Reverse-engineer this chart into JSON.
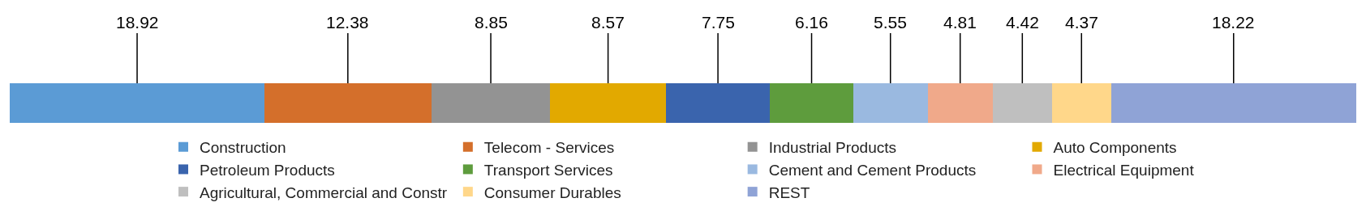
{
  "chart_data": {
    "type": "bar",
    "orientation": "horizontal",
    "stacked": true,
    "categories": [
      null
    ],
    "xlim": [
      0,
      100
    ],
    "tick_labels": false,
    "legend": "bottom",
    "data_labels": true,
    "series": [
      {
        "name": "Construction",
        "color": "#5b9bd5",
        "values": [
          18.92
        ]
      },
      {
        "name": "Telecom - Services",
        "color": "#d46f2b",
        "values": [
          12.38
        ]
      },
      {
        "name": "Industrial Products",
        "color": "#939393",
        "values": [
          8.85
        ]
      },
      {
        "name": "Auto Components",
        "color": "#e2a900",
        "values": [
          8.57
        ]
      },
      {
        "name": "Petroleum Products",
        "color": "#3a64ad",
        "values": [
          7.75
        ]
      },
      {
        "name": "Transport Services",
        "color": "#5e9c3d",
        "values": [
          6.16
        ]
      },
      {
        "name": "Cement and Cement Products",
        "color": "#9ab9e0",
        "values": [
          5.55
        ]
      },
      {
        "name": "Electrical Equipment",
        "color": "#f0a98a",
        "values": [
          4.81
        ]
      },
      {
        "name": "Agricultural, Commercial and Constr",
        "color": "#bfbfbf",
        "values": [
          4.42
        ]
      },
      {
        "name": "Consumer Durables",
        "color": "#ffd78a",
        "values": [
          4.37
        ]
      },
      {
        "name": "REST",
        "color": "#8fa3d6",
        "values": [
          18.22
        ]
      }
    ]
  }
}
